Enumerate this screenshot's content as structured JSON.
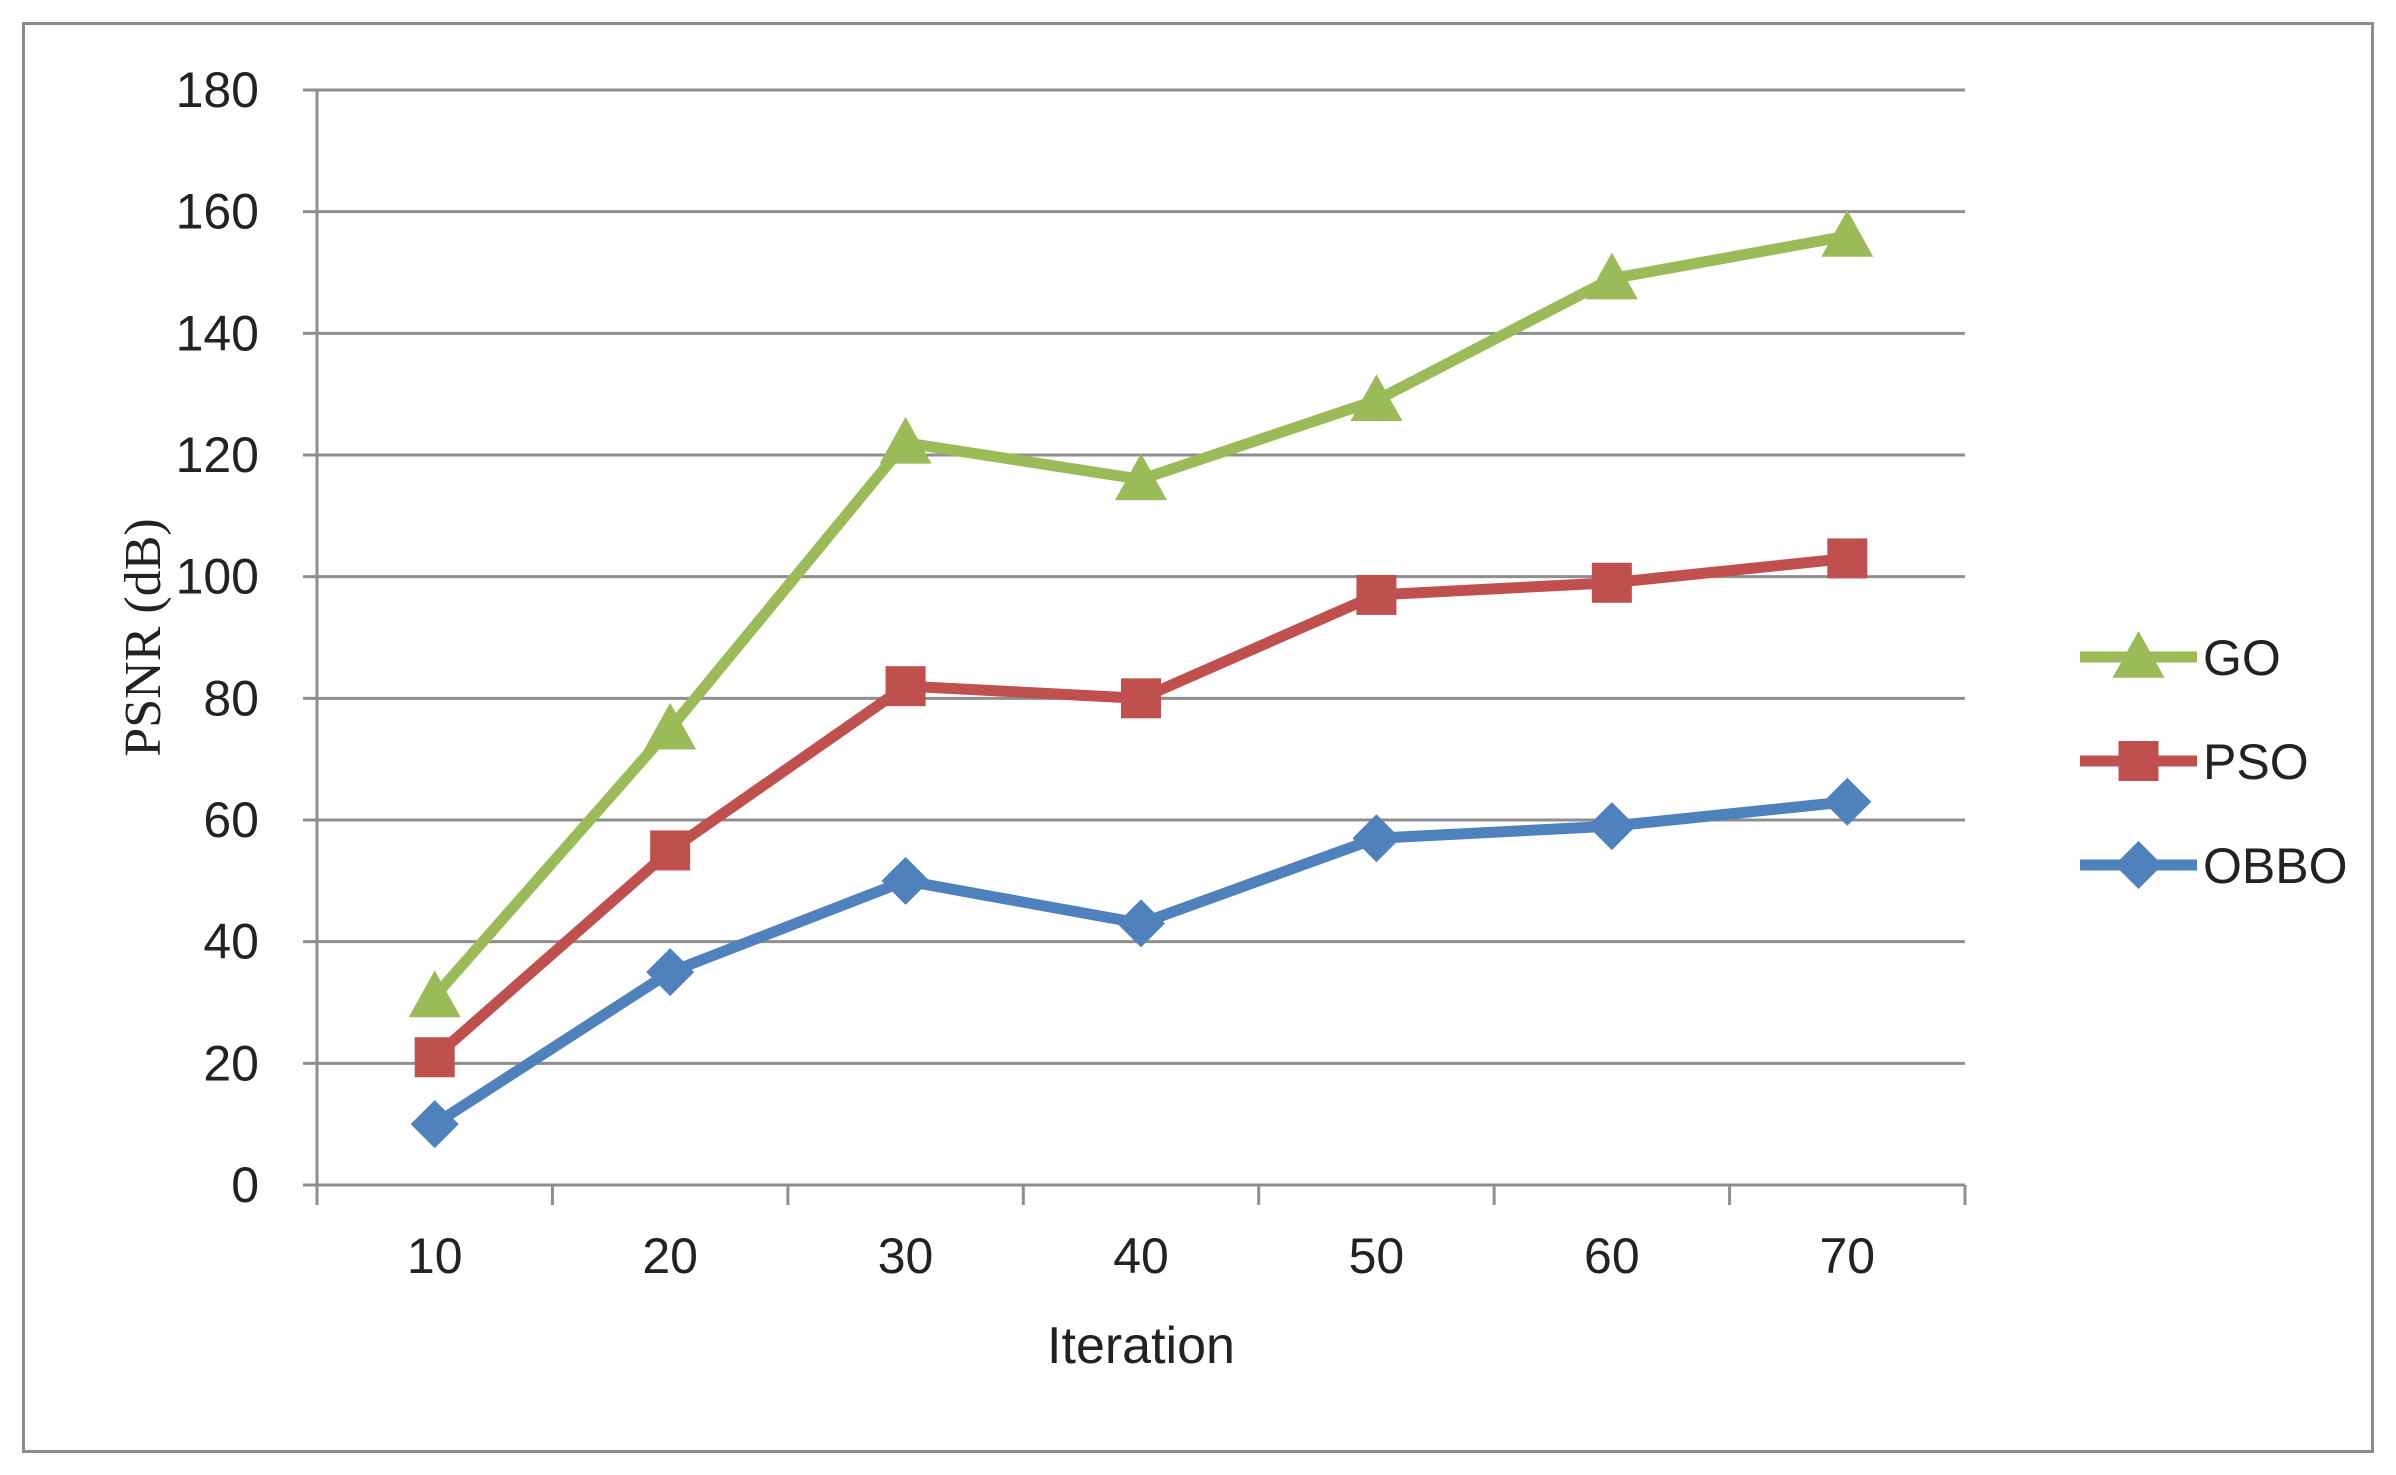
{
  "chart_data": {
    "type": "line",
    "title": "",
    "xlabel": "Iteration",
    "ylabel": "PSNR (dB)",
    "x": [
      10,
      20,
      30,
      40,
      50,
      60,
      70
    ],
    "ylim": [
      0,
      180
    ],
    "yticks": [
      0,
      20,
      40,
      60,
      80,
      100,
      120,
      140,
      160,
      180
    ],
    "grid": true,
    "legend": "right",
    "series": [
      {
        "name": "GO",
        "color": "#9bbb59",
        "marker": "triangle",
        "values": [
          31,
          75,
          122,
          116,
          129,
          149,
          156
        ]
      },
      {
        "name": "PSO",
        "color": "#c0504d",
        "marker": "square",
        "values": [
          21,
          55,
          82,
          80,
          97,
          99,
          103
        ]
      },
      {
        "name": "OBBO",
        "color": "#4f81bd",
        "marker": "diamond",
        "values": [
          10,
          35,
          50,
          43,
          57,
          59,
          63
        ]
      }
    ]
  }
}
